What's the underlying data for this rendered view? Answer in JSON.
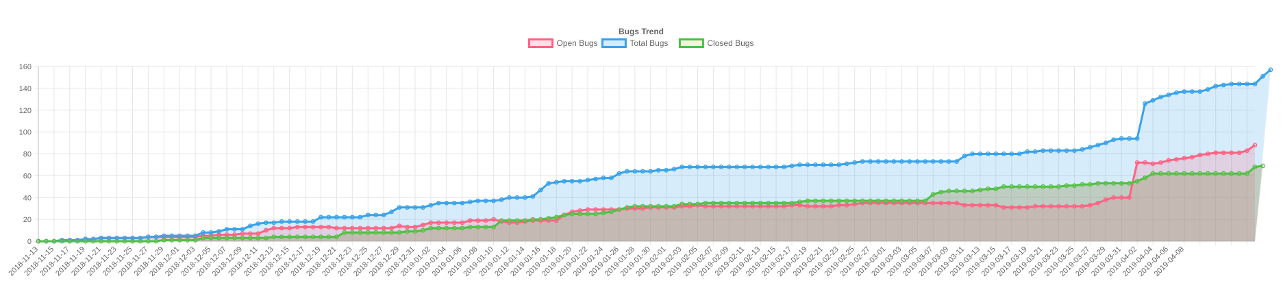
{
  "chart_data": {
    "type": "area",
    "title": "Bugs Trend",
    "xlabel": "",
    "ylabel": "",
    "ylim": [
      0,
      160
    ],
    "yticks": [
      0,
      20,
      40,
      60,
      80,
      100,
      120,
      140,
      160
    ],
    "grid": true,
    "legend_position": "top-center",
    "start_date": "2018-11-13",
    "end_date": "2019-04-09",
    "x_tick_labels": [
      "2018-11-13",
      "2018-11-15",
      "2018-11-17",
      "2018-11-19",
      "2018-11-21",
      "2018-11-23",
      "2018-11-25",
      "2018-11-27",
      "2018-11-29",
      "2018-12-01",
      "2018-12-03",
      "2018-12-05",
      "2018-12-07",
      "2018-12-09",
      "2018-12-11",
      "2018-12-13",
      "2018-12-15",
      "2018-12-17",
      "2018-12-19",
      "2018-12-21",
      "2018-12-23",
      "2018-12-25",
      "2018-12-27",
      "2018-12-29",
      "2018-12-31",
      "2019-01-02",
      "2019-01-04",
      "2019-01-06",
      "2019-01-08",
      "2019-01-10",
      "2019-01-12",
      "2019-01-14",
      "2019-01-16",
      "2019-01-18",
      "2019-01-20",
      "2019-01-22",
      "2019-01-24",
      "2019-01-26",
      "2019-01-28",
      "2019-01-30",
      "2019-02-01",
      "2019-02-03",
      "2019-02-05",
      "2019-02-07",
      "2019-02-09",
      "2019-02-11",
      "2019-02-13",
      "2019-02-15",
      "2019-02-17",
      "2019-02-19",
      "2019-02-21",
      "2019-02-23",
      "2019-02-25",
      "2019-02-27",
      "2019-03-01",
      "2019-03-03",
      "2019-03-05",
      "2019-03-07",
      "2019-03-09",
      "2019-03-11",
      "2019-03-13",
      "2019-03-15",
      "2019-03-17",
      "2019-03-19",
      "2019-03-21",
      "2019-03-23",
      "2019-03-25",
      "2019-03-27",
      "2019-03-29",
      "2019-03-31",
      "2019-04-02",
      "2019-04-04",
      "2019-04-06",
      "2019-04-08"
    ],
    "series": [
      {
        "name": "Open Bugs",
        "color": "#ff6384",
        "fill": "rgba(255,99,132,0.2)",
        "values": [
          0,
          0,
          0,
          1,
          1,
          1,
          2,
          2,
          3,
          3,
          3,
          3,
          3,
          3,
          4,
          4,
          4,
          4,
          4,
          4,
          4,
          5,
          5,
          6,
          6,
          6,
          7,
          7,
          7,
          10,
          12,
          12,
          12,
          13,
          13,
          13,
          13,
          13,
          12,
          12,
          12,
          12,
          12,
          12,
          12,
          12,
          14,
          13,
          13,
          15,
          17,
          17,
          17,
          17,
          17,
          19,
          19,
          19,
          20,
          18,
          17,
          17,
          18,
          19,
          19,
          19,
          19,
          24,
          27,
          28,
          29,
          29,
          29,
          29,
          29,
          30,
          30,
          30,
          31,
          31,
          31,
          31,
          32,
          32,
          33,
          32,
          32,
          32,
          32,
          32,
          32,
          32,
          32,
          32,
          32,
          32,
          33,
          33,
          32,
          32,
          32,
          32,
          33,
          33,
          34,
          35,
          35,
          35,
          35,
          35,
          35,
          35,
          35,
          35,
          35,
          35,
          35,
          35,
          33,
          33,
          33,
          33,
          33,
          31,
          31,
          31,
          31,
          32,
          32,
          32,
          32,
          32,
          32,
          32,
          33,
          35,
          38,
          40,
          40,
          40,
          72,
          72,
          71,
          72,
          74,
          75,
          76,
          77,
          79,
          80,
          81,
          81,
          81,
          81,
          83,
          88
        ]
      },
      {
        "name": "Total Bugs",
        "color": "#36a2eb",
        "fill": "rgba(54,162,235,0.2)",
        "values": [
          0,
          0,
          0,
          1,
          1,
          1,
          2,
          2,
          3,
          3,
          3,
          3,
          3,
          3,
          4,
          4,
          5,
          5,
          5,
          5,
          5,
          8,
          8,
          9,
          11,
          11,
          11,
          14,
          16,
          17,
          17,
          18,
          18,
          18,
          18,
          18,
          22,
          22,
          22,
          22,
          22,
          22,
          24,
          24,
          24,
          27,
          31,
          31,
          31,
          31,
          33,
          35,
          35,
          35,
          35,
          36,
          37,
          37,
          37,
          38,
          40,
          40,
          40,
          41,
          47,
          53,
          54,
          55,
          55,
          55,
          56,
          57,
          58,
          58,
          62,
          64,
          64,
          64,
          64,
          65,
          65,
          66,
          68,
          68,
          68,
          68,
          68,
          68,
          68,
          68,
          68,
          68,
          68,
          68,
          68,
          68,
          69,
          70,
          70,
          70,
          70,
          70,
          70,
          71,
          72,
          73,
          73,
          73,
          73,
          73,
          73,
          73,
          73,
          73,
          73,
          73,
          73,
          73,
          78,
          80,
          80,
          80,
          80,
          80,
          80,
          80,
          82,
          82,
          83,
          83,
          83,
          83,
          83,
          84,
          86,
          88,
          90,
          93,
          94,
          94,
          94,
          126,
          129,
          132,
          134,
          136,
          137,
          137,
          137,
          139,
          142,
          143,
          144,
          144,
          144,
          144,
          151,
          157
        ]
      },
      {
        "name": "Closed Bugs",
        "color": "#4bc044",
        "fill": "rgba(200,200,80,0.2)",
        "values": [
          0,
          0,
          0,
          0,
          0,
          0,
          0,
          0,
          0,
          0,
          0,
          0,
          0,
          0,
          0,
          0,
          1,
          1,
          1,
          1,
          1,
          3,
          3,
          3,
          3,
          3,
          3,
          3,
          3,
          3,
          4,
          4,
          4,
          4,
          4,
          4,
          4,
          4,
          4,
          8,
          8,
          8,
          8,
          8,
          8,
          8,
          8,
          9,
          9,
          10,
          12,
          12,
          12,
          12,
          12,
          13,
          13,
          13,
          13,
          19,
          19,
          19,
          19,
          20,
          20,
          21,
          22,
          24,
          25,
          25,
          25,
          25,
          26,
          27,
          29,
          31,
          32,
          32,
          32,
          32,
          32,
          32,
          34,
          34,
          34,
          35,
          35,
          35,
          35,
          35,
          35,
          35,
          35,
          35,
          35,
          35,
          35,
          36,
          37,
          37,
          37,
          37,
          37,
          37,
          37,
          37,
          37,
          37,
          37,
          37,
          37,
          37,
          37,
          37,
          43,
          45,
          46,
          46,
          46,
          46,
          47,
          48,
          48,
          50,
          50,
          50,
          50,
          50,
          50,
          50,
          50,
          51,
          51,
          52,
          52,
          53,
          53,
          53,
          53,
          53,
          55,
          58,
          62,
          62,
          62,
          62,
          62,
          62,
          62,
          62,
          62,
          62,
          62,
          62,
          62,
          68,
          69
        ]
      }
    ]
  }
}
